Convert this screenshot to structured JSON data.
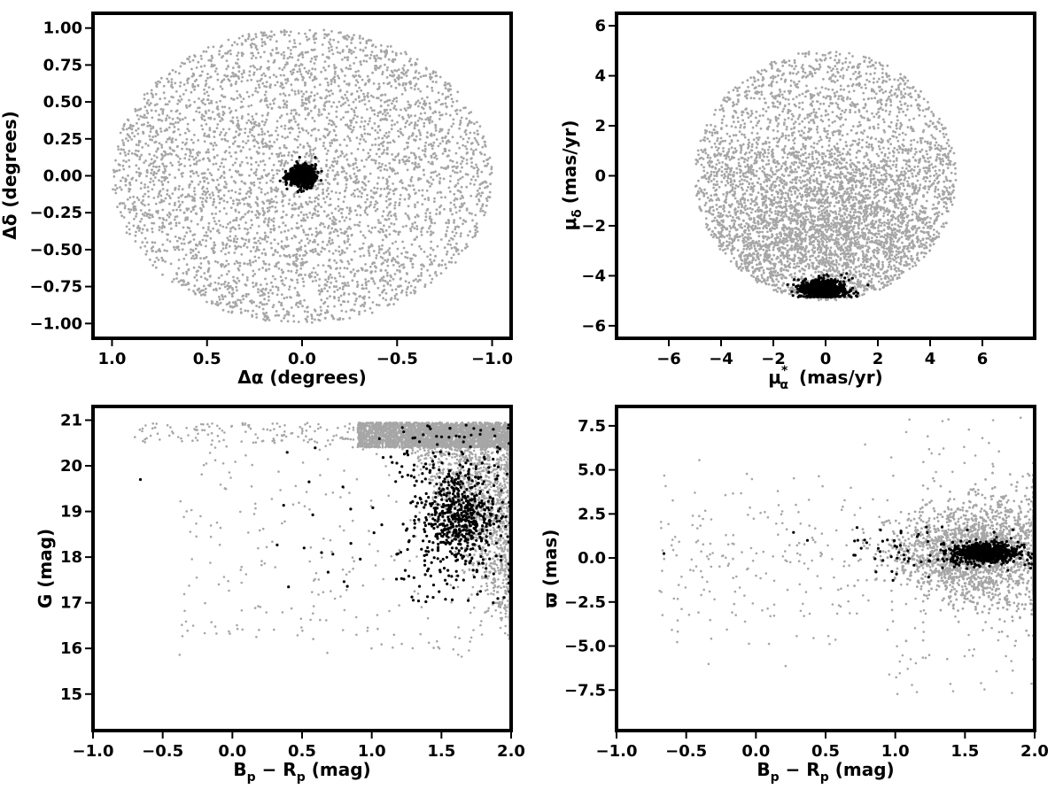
{
  "chart_data": [
    {
      "id": "sky",
      "type": "scatter",
      "xlabel": "Δα (degrees)",
      "ylabel": "Δδ (degrees)",
      "xlim": [
        1.1,
        -1.1
      ],
      "ylim": [
        -1.1,
        1.1
      ],
      "x_ticks": [
        1.0,
        0.5,
        0.0,
        -0.5,
        -1.0
      ],
      "x_tick_labels": [
        "1.0",
        "0.5",
        "0.0",
        "−0.5",
        "−1.0"
      ],
      "y_ticks": [
        1.0,
        0.75,
        0.5,
        0.25,
        0.0,
        -0.25,
        -0.5,
        -0.75,
        -1.0
      ],
      "y_tick_labels": [
        "1.00",
        "0.75",
        "0.50",
        "0.25",
        "0.00",
        "−0.25",
        "−0.50",
        "−0.75",
        "−1.00"
      ],
      "grid": false,
      "series": [
        {
          "color": "#a6a6a6",
          "distribution": "uniform disk",
          "center": [
            0.0,
            0.0
          ],
          "radius": 1.0
        },
        {
          "color": "#000000",
          "distribution": "compact cluster",
          "center": [
            0.0,
            0.0
          ],
          "radius": 0.12
        }
      ]
    },
    {
      "id": "pm",
      "type": "scatter",
      "xlabel_main": "μ",
      "xlabel_sub": "α",
      "xlabel_sup": "*",
      "xlabel_units": "(mas/yr)",
      "ylabel_main": "μ",
      "ylabel_sub": "δ",
      "ylabel_units": "(mas/yr)",
      "xlim": [
        -8.0,
        8.0
      ],
      "ylim": [
        -6.5,
        6.5
      ],
      "x_ticks": [
        -6,
        -4,
        -2,
        0,
        2,
        4,
        6
      ],
      "x_tick_labels": [
        "−6",
        "−4",
        "−2",
        "0",
        "2",
        "4",
        "6"
      ],
      "y_ticks": [
        6,
        4,
        2,
        0,
        -2,
        -4,
        -6
      ],
      "y_tick_labels": [
        "6",
        "4",
        "2",
        "0",
        "−2",
        "−4",
        "−6"
      ],
      "grid": false,
      "series": [
        {
          "color": "#a6a6a6",
          "distribution": "uniform disk",
          "center": [
            0.0,
            0.0
          ],
          "radius": 5.0
        },
        {
          "color": "#000000",
          "distribution": "compact cluster",
          "center": [
            -0.1,
            -4.5
          ],
          "spread": [
            0.8,
            0.3
          ]
        }
      ]
    },
    {
      "id": "cmd",
      "type": "scatter",
      "xlabel_main": "B",
      "xlabel_sub1": "p",
      "xlabel_mid": " − R",
      "xlabel_sub2": "p",
      "xlabel_units": " (mag)",
      "ylabel": "G (mag)",
      "xlim": [
        -1.0,
        2.0
      ],
      "ylim": [
        14.2,
        21.3
      ],
      "x_ticks": [
        -1.0,
        -0.5,
        0.0,
        0.5,
        1.0,
        1.5,
        2.0
      ],
      "x_tick_labels": [
        "−1.0",
        "−0.5",
        "0.0",
        "0.5",
        "1.0",
        "1.5",
        "2.0"
      ],
      "y_ticks": [
        21,
        20,
        19,
        18,
        17,
        16,
        15
      ],
      "y_tick_labels": [
        "21",
        "20",
        "19",
        "18",
        "17",
        "16",
        "15"
      ],
      "grid": false,
      "series": [
        {
          "color": "#a6a6a6",
          "distribution": "field population"
        },
        {
          "color": "#000000",
          "distribution": "member population",
          "center": [
            1.6,
            18.9
          ]
        }
      ]
    },
    {
      "id": "parallax",
      "type": "scatter",
      "xlabel_main": "B",
      "xlabel_sub1": "p",
      "xlabel_mid": " − R",
      "xlabel_sub2": "p",
      "xlabel_units": " (mag)",
      "ylabel": "ϖ (mas)",
      "xlim": [
        -1.0,
        2.0
      ],
      "ylim": [
        -9.8,
        8.6
      ],
      "x_ticks": [
        -1.0,
        -0.5,
        0.0,
        0.5,
        1.0,
        1.5,
        2.0
      ],
      "x_tick_labels": [
        "−1.0",
        "−0.5",
        "0.0",
        "0.5",
        "1.0",
        "1.5",
        "2.0"
      ],
      "y_ticks": [
        7.5,
        5.0,
        2.5,
        0.0,
        -2.5,
        -5.0,
        -7.5
      ],
      "y_tick_labels": [
        "7.5",
        "5.0",
        "2.5",
        "0.0",
        "−2.5",
        "−5.0",
        "−7.5"
      ],
      "grid": false,
      "series": [
        {
          "color": "#a6a6a6",
          "distribution": "field population",
          "center": [
            1.6,
            0.3
          ]
        },
        {
          "color": "#000000",
          "distribution": "member population",
          "center": [
            1.6,
            0.3
          ]
        }
      ]
    }
  ]
}
